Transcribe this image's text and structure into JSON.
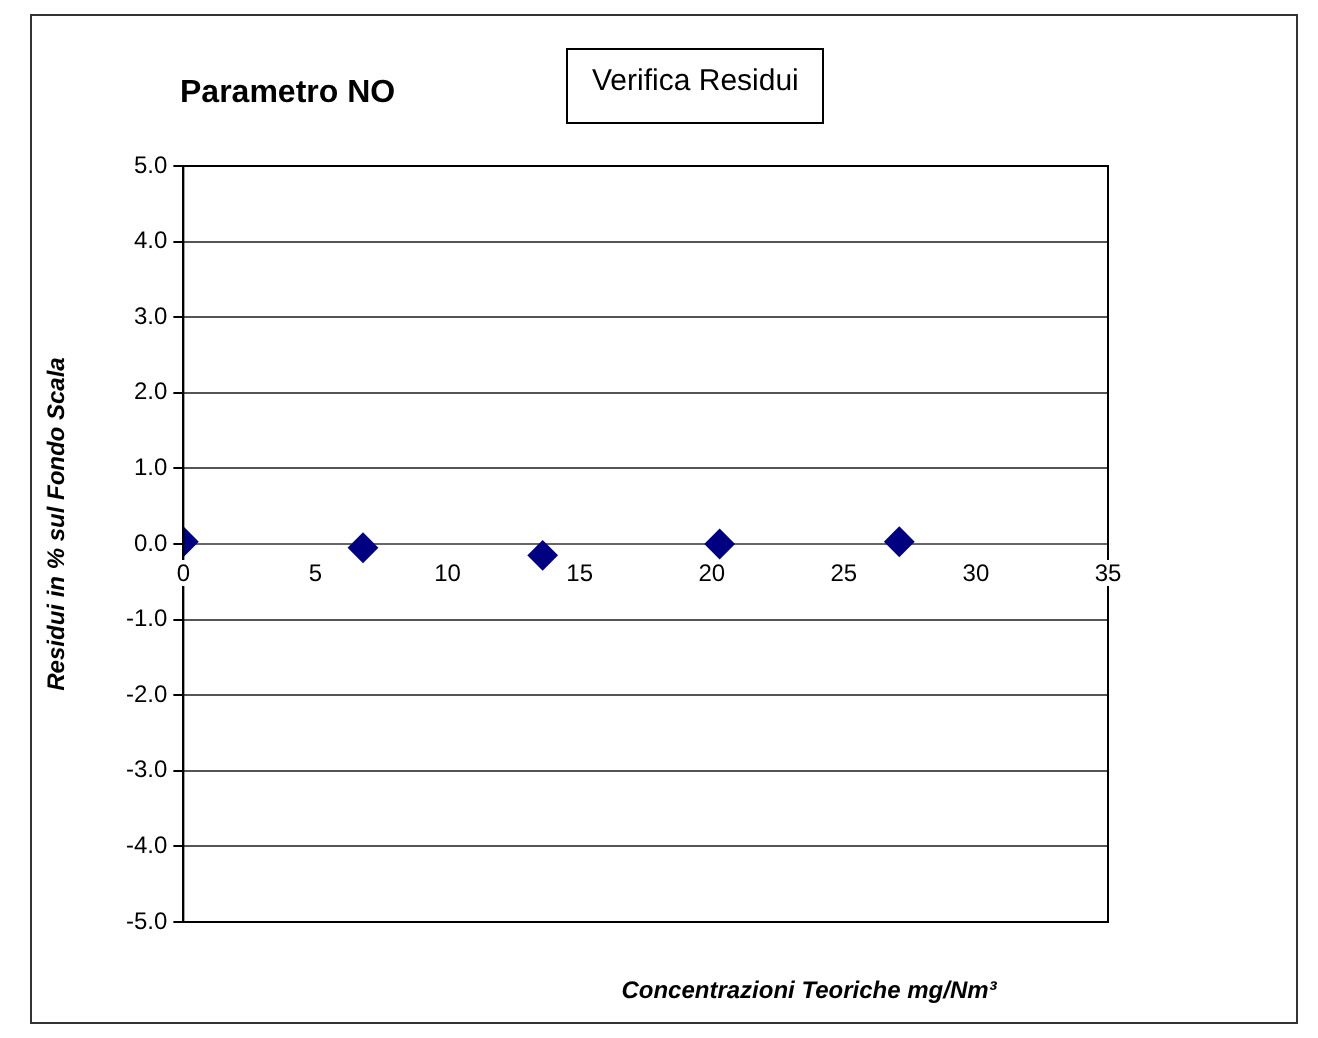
{
  "chart_data": {
    "type": "scatter",
    "title": "Parametro NO",
    "subtitle": "Verifica Residui",
    "xlabel": "Concentrazioni Teoriche mg/Nm³",
    "ylabel": "Residui  in % sul Fondo Scala",
    "x": [
      0,
      6.8,
      13.6,
      20.3,
      27.1
    ],
    "series": [
      {
        "color": "#000080",
        "values": [
          0.03,
          -0.05,
          -0.15,
          0.0,
          0.03
        ]
      }
    ],
    "xlim": [
      0,
      35
    ],
    "xticks": [
      0,
      5,
      10,
      15,
      20,
      25,
      30,
      35
    ],
    "ylim": [
      -5,
      5
    ],
    "yticks": [
      {
        "value": -5,
        "label": "-5.0"
      },
      {
        "value": -4,
        "label": "-4.0"
      },
      {
        "value": -3,
        "label": "-3.0"
      },
      {
        "value": -2,
        "label": "-2.0"
      },
      {
        "value": -1,
        "label": "-1.0"
      },
      {
        "value": 0,
        "label": "0.0"
      },
      {
        "value": 1,
        "label": "1.0"
      },
      {
        "value": 2,
        "label": "2.0"
      },
      {
        "value": 3,
        "label": "3.0"
      },
      {
        "value": 4,
        "label": "4.0"
      },
      {
        "value": 5,
        "label": "5.0"
      }
    ],
    "grid": "y",
    "marker": "diamond",
    "legend": false
  }
}
